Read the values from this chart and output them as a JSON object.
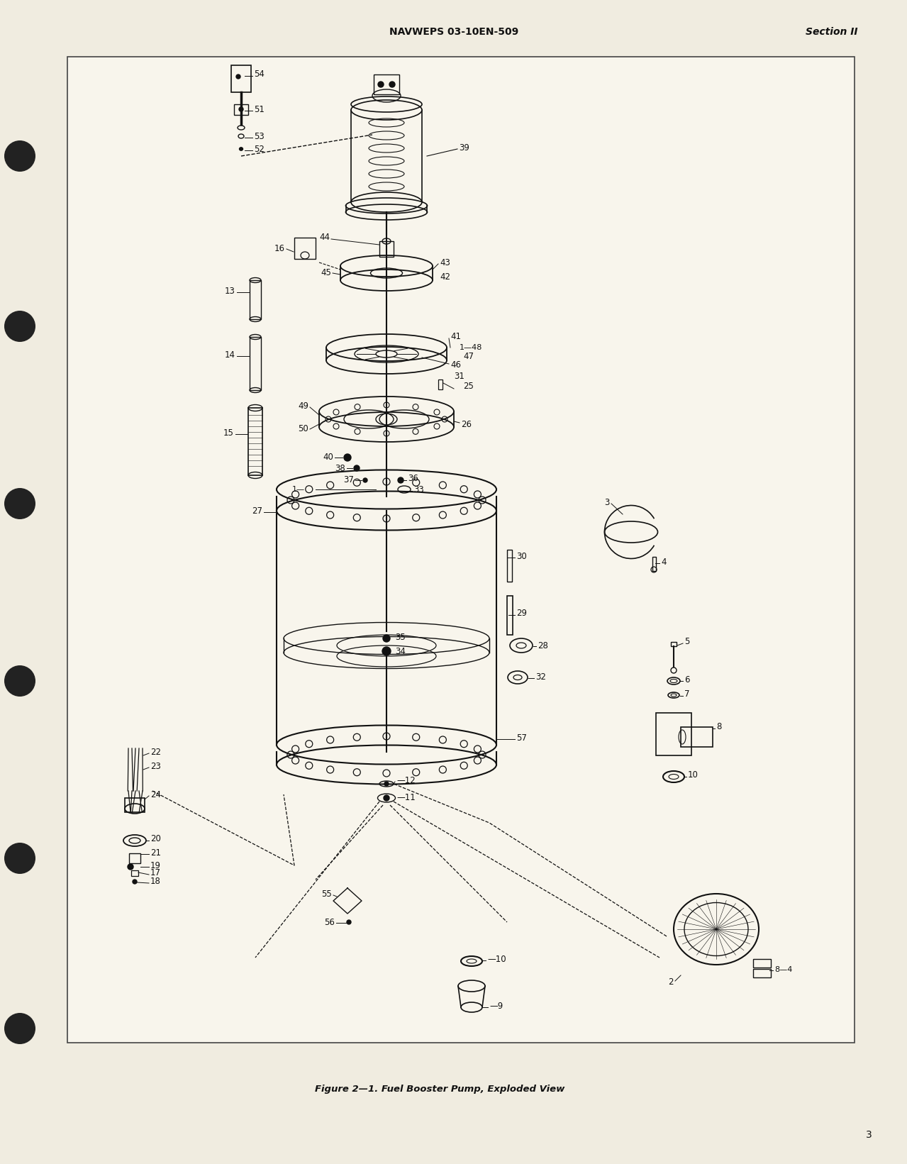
{
  "bg_color": "#f0ece0",
  "page_bg": "#f0ece0",
  "box_bg": "#f8f5ec",
  "header_text": "NAVWEPS 03-10EN-509",
  "header_right": "Section II",
  "footer_caption": "Figure 2—1. Fuel Booster Pump, Exploded View",
  "page_number": "3",
  "title_fontsize": 10,
  "caption_fontsize": 9.5,
  "label_fontsize": 8.5,
  "lc": "#111111"
}
